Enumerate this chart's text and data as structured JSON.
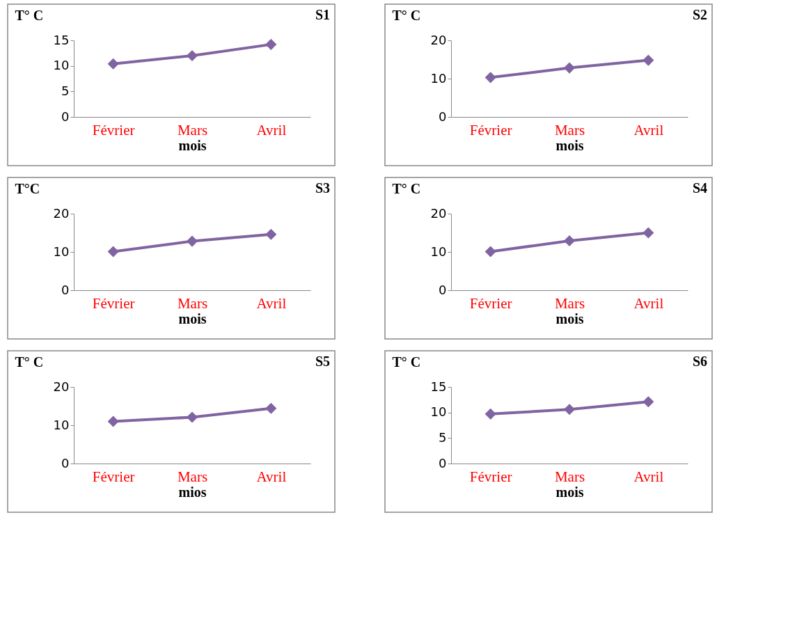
{
  "chart_data": [
    {
      "type": "line",
      "title": "S1",
      "ylabel": "T° C",
      "xlabel": "mois",
      "categories": [
        "Février",
        "Mars",
        "Avril"
      ],
      "series": [
        {
          "color": "#8064a2",
          "values": [
            10.4,
            12.0,
            14.2
          ]
        }
      ],
      "ylim": [
        0,
        15
      ],
      "yticks": [
        0,
        5,
        10,
        15
      ],
      "marker": "diamond",
      "grid": false
    },
    {
      "type": "line",
      "title": "S2",
      "ylabel": "T° C",
      "xlabel": "mois",
      "categories": [
        "Février",
        "Mars",
        "Avril"
      ],
      "series": [
        {
          "color": "#8064a2",
          "values": [
            10.3,
            12.8,
            14.8
          ]
        }
      ],
      "ylim": [
        0,
        20
      ],
      "yticks": [
        0,
        10,
        20
      ],
      "marker": "diamond",
      "grid": false
    },
    {
      "type": "line",
      "title": "S3",
      "ylabel": "T°C",
      "xlabel": "mois",
      "categories": [
        "Février",
        "Mars",
        "Avril"
      ],
      "series": [
        {
          "color": "#8064a2",
          "values": [
            10.1,
            12.8,
            14.6
          ]
        }
      ],
      "ylim": [
        0,
        20
      ],
      "yticks": [
        0,
        10,
        20
      ],
      "marker": "diamond",
      "grid": false
    },
    {
      "type": "line",
      "title": "S4",
      "ylabel": "T° C",
      "xlabel": "mois",
      "categories": [
        "Février",
        "Mars",
        "Avril"
      ],
      "series": [
        {
          "color": "#8064a2",
          "values": [
            10.1,
            12.9,
            15.0
          ]
        }
      ],
      "ylim": [
        0,
        20
      ],
      "yticks": [
        0,
        10,
        20
      ],
      "marker": "diamond",
      "grid": false
    },
    {
      "type": "line",
      "title": "S5",
      "ylabel": "T° C",
      "xlabel": "mios",
      "categories": [
        "Février",
        "Mars",
        "Avril"
      ],
      "series": [
        {
          "color": "#8064a2",
          "values": [
            11.0,
            12.1,
            14.4
          ]
        }
      ],
      "ylim": [
        0,
        20
      ],
      "yticks": [
        0,
        10,
        20
      ],
      "marker": "diamond",
      "grid": false
    },
    {
      "type": "line",
      "title": "S6",
      "ylabel": "T° C",
      "xlabel": "mois",
      "categories": [
        "Février",
        "Mars",
        "Avril"
      ],
      "series": [
        {
          "color": "#8064a2",
          "values": [
            9.7,
            10.6,
            12.1
          ]
        }
      ],
      "ylim": [
        0,
        15
      ],
      "yticks": [
        0,
        5,
        10,
        15
      ],
      "marker": "diamond",
      "grid": false
    }
  ]
}
